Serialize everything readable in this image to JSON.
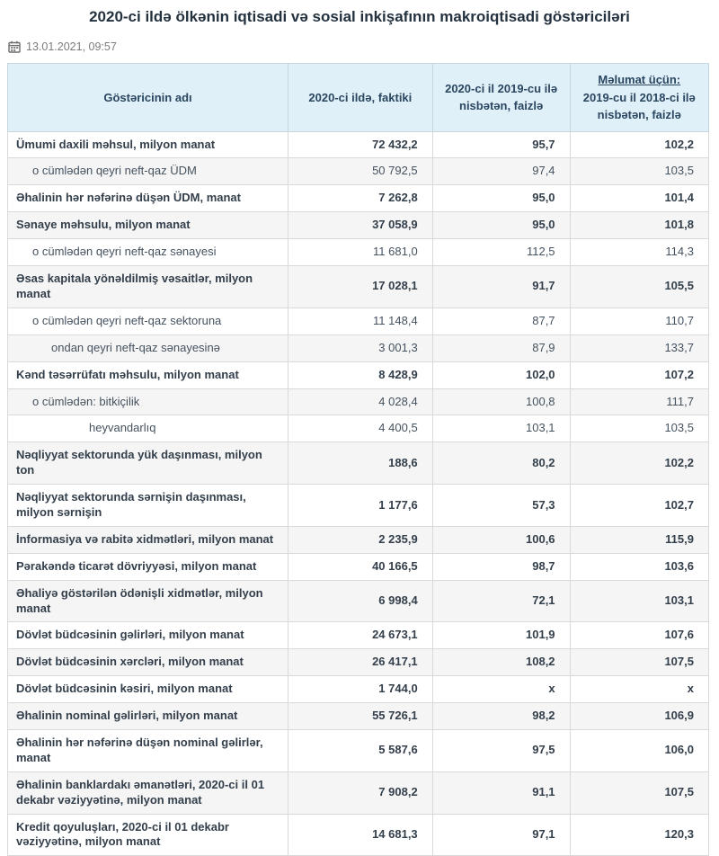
{
  "page": {
    "title": "2020-ci ildə ölkənin iqtisadi və sosial inkişafının makroiqtisadi göstəriciləri",
    "published": "13.01.2021, 09:57"
  },
  "colors": {
    "header_bg": "#dff0f8",
    "header_text": "#2a4660",
    "zebra_row_bg": "#f5f5f5",
    "body_text": "#45525f",
    "title_text": "#243240",
    "date_text": "#7c7c7c",
    "border": "#d9d9d9"
  },
  "table": {
    "headers": {
      "name": "Göstəricinin adı",
      "fact": "2020-ci ildə, faktiki",
      "vs2019": "2020-ci il 2019-cu ilə nisbətən, faizlə",
      "vs2018_line1": "Məlumat üçün:",
      "vs2018_line2": "2019-cu il 2018-ci ilə nisbətən, faizlə"
    },
    "rows": [
      {
        "name": "Ümumi daxili məhsul, milyon manat",
        "fact": "72 432,2",
        "vs2019": "95,7",
        "vs2018": "102,2",
        "bold": true,
        "indent": 0
      },
      {
        "name": "o cümlədən qeyri neft-qaz ÜDM",
        "fact": "50 792,5",
        "vs2019": "97,4",
        "vs2018": "103,5",
        "bold": false,
        "indent": 1
      },
      {
        "name": "Əhalinin hər nəfərinə düşən ÜDM, manat",
        "fact": "7 262,8",
        "vs2019": "95,0",
        "vs2018": "101,4",
        "bold": true,
        "indent": 0
      },
      {
        "name": "Sənaye məhsulu, milyon manat",
        "fact": "37 058,9",
        "vs2019": "95,0",
        "vs2018": "101,8",
        "bold": true,
        "indent": 0
      },
      {
        "name": "o cümlədən qeyri neft-qaz sənayesi",
        "fact": "11 681,0",
        "vs2019": "112,5",
        "vs2018": "114,3",
        "bold": false,
        "indent": 1
      },
      {
        "name": "Əsas kapitala yönəldilmiş vəsaitlər, milyon manat",
        "fact": "17 028,1",
        "vs2019": "91,7",
        "vs2018": "105,5",
        "bold": true,
        "indent": 0
      },
      {
        "name": "o cümlədən qeyri neft-qaz sektoruna",
        "fact": "11 148,4",
        "vs2019": "87,7",
        "vs2018": "110,7",
        "bold": false,
        "indent": 1
      },
      {
        "name": "ondan qeyri neft-qaz sənayesinə",
        "fact": "3 001,3",
        "vs2019": "87,9",
        "vs2018": "133,7",
        "bold": false,
        "indent": 2
      },
      {
        "name": "Kənd təsərrüfatı məhsulu, milyon manat",
        "fact": "8 428,9",
        "vs2019": "102,0",
        "vs2018": "107,2",
        "bold": true,
        "indent": 0
      },
      {
        "name": "o cümlədən: bitkiçilik",
        "fact": "4 028,4",
        "vs2019": "100,8",
        "vs2018": "111,7",
        "bold": false,
        "indent": 1
      },
      {
        "name": "heyvandarlıq",
        "fact": "4 400,5",
        "vs2019": "103,1",
        "vs2018": "103,5",
        "bold": false,
        "indent": 3
      },
      {
        "name": "Nəqliyyat sektorunda yük daşınması, milyon ton",
        "fact": "188,6",
        "vs2019": "80,2",
        "vs2018": "102,2",
        "bold": true,
        "indent": 0
      },
      {
        "name": "Nəqliyyat sektorunda sərnişin daşınması, milyon sərnişin",
        "fact": "1 177,6",
        "vs2019": "57,3",
        "vs2018": "102,7",
        "bold": true,
        "indent": 0
      },
      {
        "name": "İnformasiya və rabitə xidmətləri, milyon manat",
        "fact": "2 235,9",
        "vs2019": "100,6",
        "vs2018": "115,9",
        "bold": true,
        "indent": 0
      },
      {
        "name": "Pərakəndə ticarət dövriyyəsi, milyon manat",
        "fact": "40 166,5",
        "vs2019": "98,7",
        "vs2018": "103,6",
        "bold": true,
        "indent": 0
      },
      {
        "name": "Əhaliyə göstərilən ödənişli xidmətlər, milyon manat",
        "fact": "6 998,4",
        "vs2019": "72,1",
        "vs2018": "103,1",
        "bold": true,
        "indent": 0
      },
      {
        "name": "Dövlət büdcəsinin gəlirləri, milyon manat",
        "fact": "24 673,1",
        "vs2019": "101,9",
        "vs2018": "107,6",
        "bold": true,
        "indent": 0
      },
      {
        "name": "Dövlət büdcəsinin xərcləri, milyon manat",
        "fact": "26 417,1",
        "vs2019": "108,2",
        "vs2018": "107,5",
        "bold": true,
        "indent": 0
      },
      {
        "name": "Dövlət büdcəsinin kəsiri, milyon manat",
        "fact": "1 744,0",
        "vs2019": "x",
        "vs2018": "x",
        "bold": true,
        "indent": 0
      },
      {
        "name": "Əhalinin nominal gəlirləri, milyon manat",
        "fact": "55 726,1",
        "vs2019": "98,2",
        "vs2018": "106,9",
        "bold": true,
        "indent": 0
      },
      {
        "name": "Əhalinin hər nəfərinə düşən nominal gəlirlər, manat",
        "fact": "5 587,6",
        "vs2019": "97,5",
        "vs2018": "106,0",
        "bold": true,
        "indent": 0
      },
      {
        "name": "Əhalinin banklardakı əmanətləri, 2020-ci il 01 dekabr vəziyyətinə, milyon manat",
        "fact": "7 908,2",
        "vs2019": "91,1",
        "vs2018": "107,5",
        "bold": true,
        "indent": 0
      },
      {
        "name": "Kredit qoyuluşları, 2020-ci il 01 dekabr vəziyyətinə, milyon manat",
        "fact": "14 681,3",
        "vs2019": "97,1",
        "vs2018": "120,3",
        "bold": true,
        "indent": 0
      }
    ]
  }
}
